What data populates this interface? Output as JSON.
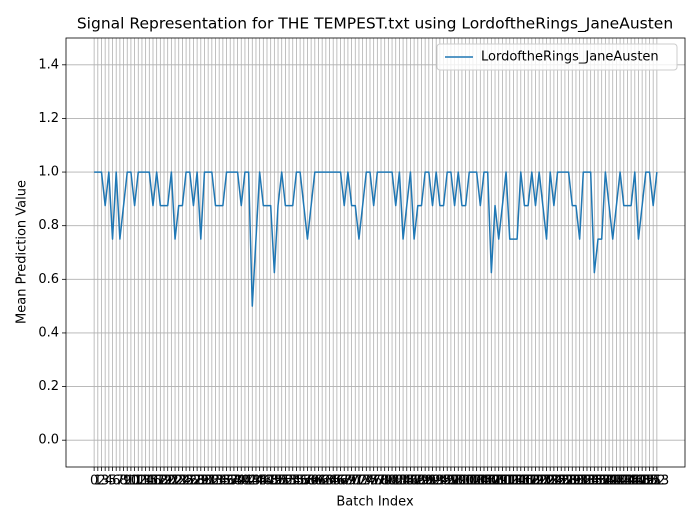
{
  "chart_data": {
    "type": "line",
    "title": "Signal Representation for THE TEMPEST.txt using LordoftheRings_JaneAusten",
    "xlabel": "Batch Index",
    "ylabel": "Mean Prediction Value",
    "x": [
      0,
      1,
      2,
      3,
      4,
      5,
      6,
      7,
      8,
      9,
      10,
      11,
      12,
      13,
      14,
      15,
      16,
      17,
      18,
      19,
      20,
      21,
      22,
      23,
      24,
      25,
      26,
      27,
      28,
      29,
      30,
      31,
      32,
      33,
      34,
      35,
      36,
      37,
      38,
      39,
      40,
      41,
      42,
      43,
      44,
      45,
      46,
      47,
      48,
      49,
      50,
      51,
      52,
      53,
      54,
      55,
      56,
      57,
      58,
      59,
      60,
      61,
      62,
      63,
      64,
      65,
      66,
      67,
      68,
      69,
      70,
      71,
      72,
      73,
      74,
      75,
      76,
      77,
      78,
      79,
      80,
      81,
      82,
      83,
      84,
      85,
      86,
      87,
      88,
      89,
      90,
      91,
      92,
      93,
      94,
      95,
      96,
      97,
      98,
      99,
      100,
      101,
      102,
      103,
      104,
      105,
      106,
      107,
      108,
      109,
      110,
      111,
      112,
      113,
      114,
      115,
      116,
      117,
      118,
      119,
      120,
      121,
      122,
      123,
      124,
      125,
      126,
      127,
      128,
      129,
      130,
      131,
      132,
      133,
      134,
      135,
      136,
      137,
      138,
      139,
      140,
      141,
      142,
      143,
      144,
      145,
      146,
      147,
      148,
      149,
      150,
      151,
      152,
      153
    ],
    "series": [
      {
        "name": "LordoftheRings_JaneAusten",
        "color": "#1f77b4",
        "values": [
          1,
          1,
          1,
          0.875,
          1,
          0.75,
          1,
          0.75,
          0.875,
          1,
          1,
          0.875,
          1,
          1,
          1,
          1,
          0.875,
          1,
          0.875,
          0.875,
          0.875,
          1,
          0.75,
          0.875,
          0.875,
          1,
          1,
          0.875,
          1,
          0.75,
          1,
          1,
          1,
          0.875,
          0.875,
          0.875,
          1,
          1,
          1,
          1,
          0.875,
          1,
          1,
          0.5,
          0.75,
          1,
          0.875,
          0.875,
          0.875,
          0.625,
          0.875,
          1,
          0.875,
          0.875,
          0.875,
          1,
          1,
          0.875,
          0.75,
          0.875,
          1,
          1,
          1,
          1,
          1,
          1,
          1,
          1,
          0.875,
          1,
          0.875,
          0.875,
          0.75,
          0.875,
          1,
          1,
          0.875,
          1,
          1,
          1,
          1,
          1,
          0.875,
          1,
          0.75,
          0.875,
          1,
          0.75,
          0.875,
          0.875,
          1,
          1,
          0.875,
          1,
          0.875,
          0.875,
          1,
          1,
          0.875,
          1,
          0.875,
          0.875,
          1,
          1,
          1,
          0.875,
          1,
          1,
          0.625,
          0.875,
          0.75,
          0.875,
          1,
          0.75,
          0.75,
          0.75,
          1,
          0.875,
          0.875,
          1,
          0.875,
          1,
          0.875,
          0.75,
          1,
          0.875,
          1,
          1,
          1,
          1,
          0.875,
          0.875,
          0.75,
          1,
          1,
          1,
          0.625,
          0.75,
          0.75,
          1,
          0.875,
          0.75,
          0.875,
          1,
          0.875,
          0.875,
          0.875,
          1,
          0.75,
          0.875,
          1,
          1,
          0.875,
          1
        ]
      }
    ],
    "xlim": [
      -7.65,
      160.65
    ],
    "xticks": [
      0,
      1,
      2,
      3,
      4,
      5,
      6,
      7,
      8,
      9,
      10,
      11,
      12,
      13,
      14,
      15,
      16,
      17,
      18,
      19,
      20,
      21,
      22,
      23,
      24,
      25,
      26,
      27,
      28,
      29,
      30,
      31,
      32,
      33,
      34,
      35,
      36,
      37,
      38,
      39,
      40,
      41,
      42,
      43,
      44,
      45,
      46,
      47,
      48,
      49,
      50,
      51,
      52,
      53,
      54,
      55,
      56,
      57,
      58,
      59,
      60,
      61,
      62,
      63,
      64,
      65,
      66,
      67,
      68,
      69,
      70,
      71,
      72,
      73,
      74,
      75,
      76,
      77,
      78,
      79,
      80,
      81,
      82,
      83,
      84,
      85,
      86,
      87,
      88,
      89,
      90,
      91,
      92,
      93,
      94,
      95,
      96,
      97,
      98,
      99,
      100,
      101,
      102,
      103,
      104,
      105,
      106,
      107,
      108,
      109,
      110,
      111,
      112,
      113,
      114,
      115,
      116,
      117,
      118,
      119,
      120,
      121,
      122,
      123,
      124,
      125,
      126,
      127,
      128,
      129,
      130,
      131,
      132,
      133,
      134,
      135,
      136,
      137,
      138,
      139,
      140,
      141,
      142,
      143,
      144,
      145,
      146,
      147,
      148,
      149,
      150,
      151,
      152,
      153
    ],
    "ylim": [
      -0.1,
      1.5
    ],
    "yticks": [
      {
        "value": 0,
        "label": "0.0"
      },
      {
        "value": 0.2,
        "label": "0.2"
      },
      {
        "value": 0.4,
        "label": "0.4"
      },
      {
        "value": 0.6,
        "label": "0.6"
      },
      {
        "value": 0.8,
        "label": "0.8"
      },
      {
        "value": 1,
        "label": "1.0"
      },
      {
        "value": 1.2,
        "label": "1.2"
      },
      {
        "value": 1.4,
        "label": "1.4"
      }
    ],
    "grid": true,
    "legend": "upper right"
  }
}
